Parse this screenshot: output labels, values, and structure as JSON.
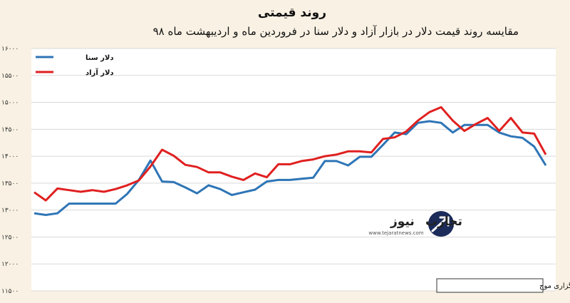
{
  "title": "روند قیمتی",
  "subtitle": "مقایسه روند قیمت دلار در بازار آزاد و دلار سنا در فروردین ماه و اردیبهشت ماه ۹۸",
  "source": "منبع: سامانه سنا و خبرگزاری موج",
  "watermark": {
    "name_part1": "تجارت",
    "name_part2": "نیوز",
    "url": "www.tejaratnews.com"
  },
  "colors": {
    "background": "#f9f1e3",
    "plot_background": "#ffffff",
    "grid": "#d9d9d9",
    "sana": "#2e75b6",
    "azad": "#e02020",
    "brand_red": "#c0392b",
    "brand_navy": "#1b2b5a"
  },
  "chart_data": {
    "type": "line",
    "title": "روند قیمتی",
    "ylim": [
      11500,
      16000
    ],
    "y_ticks": [
      "11500",
      "12000",
      "12500",
      "13000",
      "13500",
      "14000",
      "14500",
      "15000",
      "15500",
      "16000"
    ],
    "y_ticks_display": [
      "۱۱۵۰۰",
      "۱۲۰۰۰",
      "۱۲۵۰۰",
      "۱۳۰۰۰",
      "۱۳۵۰۰",
      "۱۴۰۰۰",
      "۱۴۵۰۰",
      "۱۵۰۰۰",
      "۱۵۵۰۰",
      "۱۶۰۰۰"
    ],
    "grid": true,
    "legend_position": "top-left",
    "x": [
      1,
      2,
      3,
      4,
      5,
      6,
      7,
      8,
      9,
      10,
      11,
      12,
      13,
      14,
      15,
      16,
      17,
      18,
      19,
      20,
      21,
      22,
      23,
      24,
      25,
      26,
      27,
      28,
      29,
      30,
      31,
      32,
      33,
      34,
      35,
      36,
      37,
      38,
      39,
      40,
      41,
      42,
      43,
      44,
      45
    ],
    "series": [
      {
        "name": "دلار سنا",
        "color": "#2e75b6",
        "values": [
          12940,
          12910,
          12940,
          13120,
          13120,
          13120,
          13120,
          13120,
          13300,
          13560,
          13920,
          13530,
          13520,
          13420,
          13310,
          13460,
          13390,
          13280,
          13330,
          13380,
          13530,
          13560,
          13560,
          13580,
          13600,
          13910,
          13910,
          13830,
          13990,
          13990,
          14210,
          14440,
          14410,
          14620,
          14650,
          14620,
          14440,
          14580,
          14580,
          14580,
          14440,
          14370,
          14340,
          14180,
          13830
        ]
      },
      {
        "name": "دلار آزاد",
        "color": "#e02020",
        "values": [
          13330,
          13180,
          13400,
          13370,
          13340,
          13370,
          13340,
          13390,
          13460,
          13550,
          13810,
          14120,
          14010,
          13840,
          13800,
          13700,
          13700,
          13620,
          13560,
          13680,
          13610,
          13850,
          13850,
          13910,
          13940,
          14000,
          14030,
          14090,
          14090,
          14070,
          14320,
          14350,
          14460,
          14660,
          14820,
          14910,
          14660,
          14470,
          14600,
          14710,
          14470,
          14710,
          14440,
          14420,
          14030
        ]
      }
    ]
  }
}
